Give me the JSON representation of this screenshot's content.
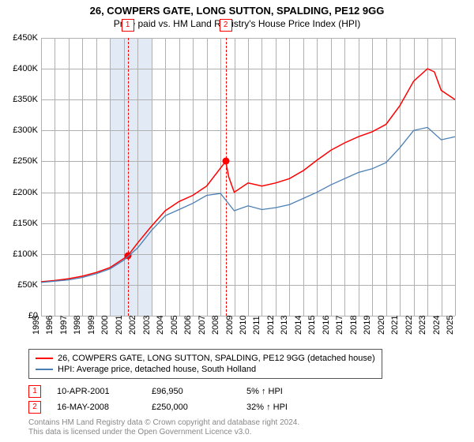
{
  "title": "26, COWPERS GATE, LONG SUTTON, SPALDING, PE12 9GG",
  "subtitle": "Price paid vs. HM Land Registry's House Price Index (HPI)",
  "plot": {
    "type": "line",
    "x_years": [
      1995,
      1996,
      1997,
      1998,
      1999,
      2000,
      2001,
      2002,
      2003,
      2004,
      2005,
      2006,
      2007,
      2008,
      2009,
      2010,
      2011,
      2012,
      2013,
      2014,
      2015,
      2016,
      2017,
      2018,
      2019,
      2020,
      2021,
      2022,
      2023,
      2024,
      2025
    ],
    "ylim": [
      0,
      450000
    ],
    "ytick_step": 50000,
    "y_prefix": "£",
    "y_suffix": "K",
    "background_color": "#ffffff",
    "grid_color": "#b0b0b0",
    "shade_band": {
      "from": 2000,
      "to": 2003,
      "color": "rgba(173,196,230,0.35)"
    },
    "sale_markers": [
      {
        "n": 1,
        "year": 2001.28,
        "price": 96950
      },
      {
        "n": 2,
        "year": 2008.38,
        "price": 250000
      }
    ],
    "series": [
      {
        "name": "property",
        "label": "26, COWPERS GATE, LONG SUTTON, SPALDING, PE12 9GG (detached house)",
        "color": "#ff0000",
        "line_width": 1.5,
        "data": [
          [
            1995,
            55000
          ],
          [
            1996,
            57000
          ],
          [
            1997,
            60000
          ],
          [
            1998,
            64000
          ],
          [
            1999,
            70000
          ],
          [
            2000,
            78000
          ],
          [
            2001.28,
            96950
          ],
          [
            2002,
            118000
          ],
          [
            2003,
            145000
          ],
          [
            2004,
            170000
          ],
          [
            2005,
            185000
          ],
          [
            2006,
            195000
          ],
          [
            2007,
            210000
          ],
          [
            2008.38,
            250000
          ],
          [
            2008.6,
            225000
          ],
          [
            2009,
            200000
          ],
          [
            2010,
            215000
          ],
          [
            2011,
            210000
          ],
          [
            2012,
            215000
          ],
          [
            2013,
            222000
          ],
          [
            2014,
            235000
          ],
          [
            2015,
            252000
          ],
          [
            2016,
            268000
          ],
          [
            2017,
            280000
          ],
          [
            2018,
            290000
          ],
          [
            2019,
            298000
          ],
          [
            2020,
            310000
          ],
          [
            2021,
            340000
          ],
          [
            2022,
            380000
          ],
          [
            2023,
            400000
          ],
          [
            2023.5,
            395000
          ],
          [
            2024,
            365000
          ],
          [
            2025,
            350000
          ]
        ]
      },
      {
        "name": "hpi",
        "label": "HPI: Average price, detached house, South Holland",
        "color": "#4a7fb5",
        "line_width": 1.3,
        "data": [
          [
            1995,
            54000
          ],
          [
            1996,
            56000
          ],
          [
            1997,
            58000
          ],
          [
            1998,
            62000
          ],
          [
            1999,
            68000
          ],
          [
            2000,
            76000
          ],
          [
            2001,
            90000
          ],
          [
            2002,
            110000
          ],
          [
            2003,
            138000
          ],
          [
            2004,
            162000
          ],
          [
            2005,
            172000
          ],
          [
            2006,
            182000
          ],
          [
            2007,
            195000
          ],
          [
            2008,
            198000
          ],
          [
            2009,
            170000
          ],
          [
            2010,
            178000
          ],
          [
            2011,
            172000
          ],
          [
            2012,
            175000
          ],
          [
            2013,
            180000
          ],
          [
            2014,
            190000
          ],
          [
            2015,
            200000
          ],
          [
            2016,
            212000
          ],
          [
            2017,
            222000
          ],
          [
            2018,
            232000
          ],
          [
            2019,
            238000
          ],
          [
            2020,
            248000
          ],
          [
            2021,
            272000
          ],
          [
            2022,
            300000
          ],
          [
            2023,
            305000
          ],
          [
            2024,
            285000
          ],
          [
            2025,
            290000
          ]
        ]
      }
    ]
  },
  "sales_table": [
    {
      "n": 1,
      "date": "10-APR-2001",
      "price": "£96,950",
      "diff": "5% ↑ HPI"
    },
    {
      "n": 2,
      "date": "16-MAY-2008",
      "price": "£250,000",
      "diff": "32% ↑ HPI"
    }
  ],
  "footer_line1": "Contains HM Land Registry data © Crown copyright and database right 2024.",
  "footer_line2": "This data is licensed under the Open Government Licence v3.0."
}
